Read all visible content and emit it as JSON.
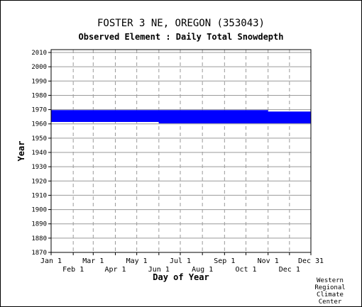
{
  "chart_data": {
    "type": "bar",
    "title": "FOSTER 3 NE, OREGON   (353043)",
    "subtitle": "Observed Element : Daily Total Snowdepth",
    "xlabel": "Day of Year",
    "ylabel": "Year",
    "xlim": [
      1,
      365
    ],
    "ylim": [
      1870,
      2012
    ],
    "y_ticks": [
      1870,
      1880,
      1890,
      1900,
      1910,
      1920,
      1930,
      1940,
      1950,
      1960,
      1970,
      1980,
      1990,
      2000,
      2010
    ],
    "x_ticks_upper": [
      {
        "label": "Jan 1",
        "day": 1
      },
      {
        "label": "Mar 1",
        "day": 60
      },
      {
        "label": "May 1",
        "day": 121
      },
      {
        "label": "Jul 1",
        "day": 182
      },
      {
        "label": "Sep 1",
        "day": 244
      },
      {
        "label": "Nov 1",
        "day": 305
      },
      {
        "label": "Dec 31",
        "day": 365
      }
    ],
    "x_ticks_lower": [
      {
        "label": "Feb 1",
        "day": 32
      },
      {
        "label": "Apr 1",
        "day": 91
      },
      {
        "label": "Jun 1",
        "day": 152
      },
      {
        "label": "Aug 1",
        "day": 213
      },
      {
        "label": "Oct 1",
        "day": 274
      },
      {
        "label": "Dec 1",
        "day": 335
      }
    ],
    "grid": true,
    "bar_color": "#0000ff",
    "series": [
      {
        "year": 1961,
        "start_day": 152,
        "end_day": 365
      },
      {
        "year": 1962,
        "start_day": 1,
        "end_day": 365
      },
      {
        "year": 1963,
        "start_day": 1,
        "end_day": 365
      },
      {
        "year": 1964,
        "start_day": 1,
        "end_day": 365
      },
      {
        "year": 1965,
        "start_day": 1,
        "end_day": 365
      },
      {
        "year": 1966,
        "start_day": 1,
        "end_day": 365
      },
      {
        "year": 1967,
        "start_day": 1,
        "end_day": 365
      },
      {
        "year": 1968,
        "start_day": 1,
        "end_day": 365
      },
      {
        "year": 1969,
        "start_day": 1,
        "end_day": 305
      }
    ]
  },
  "credit": [
    "Western",
    "Regional",
    "Climate",
    "Center"
  ]
}
